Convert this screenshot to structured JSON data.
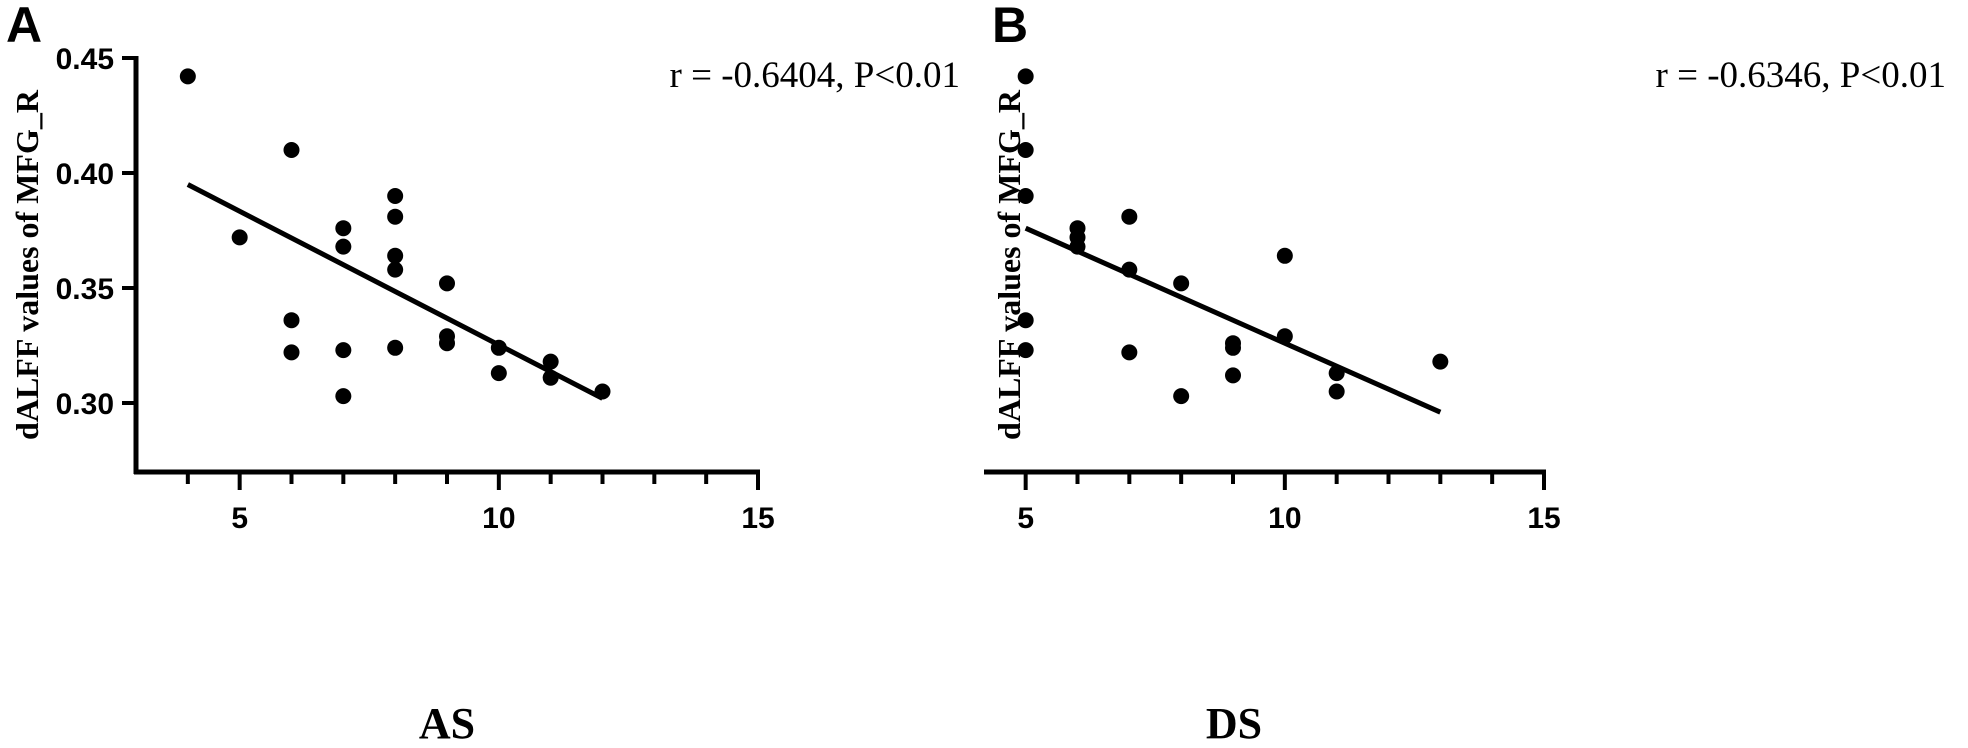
{
  "chart_data": [
    {
      "type": "scatter",
      "panel_label": "A",
      "xlabel": "AS",
      "ylabel": "dALFF values of MFG_R",
      "annotation": "r = -0.6404, P<0.01",
      "xlim": [
        3,
        15
      ],
      "ylim": [
        0.27,
        0.45
      ],
      "x_ticks": [
        5,
        10,
        15
      ],
      "x_minor_ticks": [
        4,
        6,
        7,
        8,
        9,
        11,
        12,
        13,
        14
      ],
      "y_ticks": [
        "0.45",
        "0.40",
        "0.35",
        "0.30"
      ],
      "y_tick_values": [
        0.45,
        0.4,
        0.35,
        0.3
      ],
      "points": [
        [
          4,
          0.442
        ],
        [
          5,
          0.372
        ],
        [
          6,
          0.41
        ],
        [
          6,
          0.336
        ],
        [
          6,
          0.322
        ],
        [
          7,
          0.376
        ],
        [
          7,
          0.368
        ],
        [
          7,
          0.323
        ],
        [
          7,
          0.303
        ],
        [
          8,
          0.39
        ],
        [
          8,
          0.381
        ],
        [
          8,
          0.364
        ],
        [
          8,
          0.358
        ],
        [
          8,
          0.324
        ],
        [
          9,
          0.352
        ],
        [
          9,
          0.329
        ],
        [
          9,
          0.326
        ],
        [
          10,
          0.324
        ],
        [
          10,
          0.313
        ],
        [
          11,
          0.318
        ],
        [
          11,
          0.311
        ],
        [
          12,
          0.305
        ]
      ],
      "fit_line": [
        [
          4,
          0.395
        ],
        [
          12,
          0.302
        ]
      ],
      "grid": false
    },
    {
      "type": "scatter",
      "panel_label": "B",
      "xlabel": "DS",
      "ylabel": "dALFF values of MFG_R",
      "annotation": "r = -0.6346, P<0.01",
      "xlim": [
        3,
        15
      ],
      "ylim": [
        0.27,
        0.45
      ],
      "x_ticks": [
        5,
        10,
        15
      ],
      "x_minor_ticks": [
        4,
        6,
        7,
        8,
        9,
        11,
        12,
        13,
        14
      ],
      "y_ticks": [
        "0.45",
        "0.40",
        "0.35",
        "0.30"
      ],
      "y_tick_values": [
        0.45,
        0.4,
        0.35,
        0.3
      ],
      "points": [
        [
          5,
          0.442
        ],
        [
          5,
          0.41
        ],
        [
          5,
          0.39
        ],
        [
          5,
          0.336
        ],
        [
          5,
          0.323
        ],
        [
          6,
          0.376
        ],
        [
          6,
          0.372
        ],
        [
          6,
          0.368
        ],
        [
          7,
          0.381
        ],
        [
          7,
          0.358
        ],
        [
          7,
          0.322
        ],
        [
          8,
          0.352
        ],
        [
          8,
          0.303
        ],
        [
          9,
          0.326
        ],
        [
          9,
          0.324
        ],
        [
          9,
          0.312
        ],
        [
          10,
          0.364
        ],
        [
          10,
          0.329
        ],
        [
          11,
          0.313
        ],
        [
          11,
          0.305
        ],
        [
          13,
          0.318
        ]
      ],
      "fit_line": [
        [
          5,
          0.376
        ],
        [
          13,
          0.296
        ]
      ],
      "grid": false
    }
  ]
}
